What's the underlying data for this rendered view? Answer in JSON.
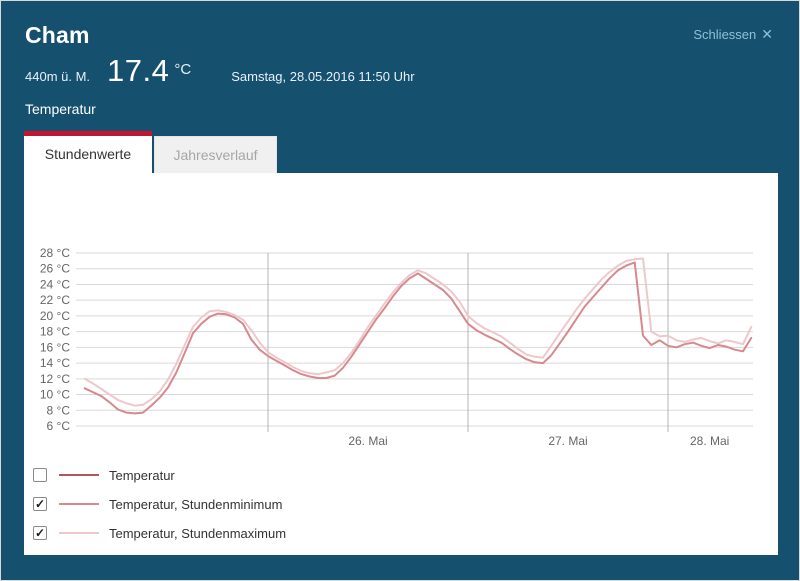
{
  "window": {
    "close_label": "Schliessen",
    "close_icon": "✕"
  },
  "header": {
    "title": "Cham",
    "elevation": "440m ü. M.",
    "current_temp": "17.4",
    "temp_unit": "°C",
    "datetime": "Samstag, 28.05.2016 11:50 Uhr",
    "section_label": "Temperatur"
  },
  "tabs": [
    {
      "label": "Stundenwerte",
      "active": true
    },
    {
      "label": "Jahresverlauf",
      "active": false
    }
  ],
  "legend": [
    {
      "label": "Temperatur",
      "checked": false,
      "color": "#b4575d"
    },
    {
      "label": "Temperatur, Stundenminimum",
      "checked": true,
      "color": "#d7898d"
    },
    {
      "label": "Temperatur, Stundenmaximum",
      "checked": true,
      "color": "#edc8cb"
    }
  ],
  "icons": {
    "check": "✓"
  },
  "colors": {
    "header_bg": "#15506e",
    "accent_red": "#c11531",
    "close_link": "#8fc0d9",
    "panel_bg": "#ffffff",
    "grid_horizontal": "#d9d9d9",
    "grid_vertical": "#b5b5b5",
    "axis_text": "#666666",
    "tab_inactive_bg": "#f0f0f0",
    "tab_inactive_text": "#a6a6a6"
  },
  "chart_data": {
    "type": "line",
    "title": "",
    "xlabel": "",
    "ylabel": "",
    "y_unit": "°C",
    "ylim": [
      6,
      28
    ],
    "y_tick_step": 2,
    "grid": true,
    "legend_position": "bottom-left",
    "hour_reference": "hours since 25.05.2016 00:00",
    "x_axis": {
      "day_lines": [
        {
          "hour": 24,
          "label": "26. Mai",
          "label_hour": 36
        },
        {
          "hour": 48,
          "label": "27. Mai",
          "label_hour": 60
        },
        {
          "hour": 72,
          "label": "28. Mai",
          "label_hour": 77
        }
      ]
    },
    "series": [
      {
        "name": "Temperatur",
        "color": "#b4575d",
        "visible": false,
        "values": []
      },
      {
        "name": "Temperatur, Stundenminimum",
        "color": "#d7898d",
        "visible": true,
        "start_hour": 2,
        "interval_hours": 1,
        "values": [
          10.8,
          10.3,
          9.8,
          9.0,
          8.1,
          7.7,
          7.6,
          7.7,
          8.6,
          9.6,
          10.9,
          12.8,
          15.3,
          17.8,
          19.0,
          19.9,
          20.3,
          20.2,
          19.8,
          19.0,
          17.0,
          15.7,
          14.9,
          14.3,
          13.7,
          13.1,
          12.6,
          12.3,
          12.1,
          12.1,
          12.4,
          13.4,
          14.8,
          16.4,
          18.0,
          19.6,
          21.0,
          22.5,
          23.8,
          24.8,
          25.4,
          24.7,
          24.0,
          23.3,
          22.2,
          20.6,
          19.0,
          18.2,
          17.6,
          17.1,
          16.6,
          15.8,
          15.1,
          14.5,
          14.1,
          14.0,
          15.0,
          16.5,
          18.0,
          19.6,
          21.2,
          22.4,
          23.6,
          24.8,
          25.8,
          26.4,
          26.8,
          17.5,
          16.3,
          16.9,
          16.2,
          16.0,
          16.4,
          16.6,
          16.2,
          15.9,
          16.3,
          16.1,
          15.7,
          15.5,
          17.2
        ]
      },
      {
        "name": "Temperatur, Stundenmaximum",
        "color": "#edc8cb",
        "visible": true,
        "start_hour": 2,
        "interval_hours": 1,
        "values": [
          12.0,
          11.4,
          10.7,
          10.0,
          9.3,
          8.9,
          8.6,
          8.7,
          9.4,
          10.4,
          11.9,
          13.9,
          16.3,
          18.6,
          19.8,
          20.6,
          20.7,
          20.5,
          20.1,
          19.5,
          18.2,
          16.6,
          15.4,
          14.7,
          14.1,
          13.5,
          13.0,
          12.7,
          12.6,
          12.8,
          13.1,
          14.0,
          15.3,
          16.9,
          18.6,
          20.1,
          21.6,
          23.0,
          24.2,
          25.2,
          25.8,
          25.4,
          24.7,
          24.0,
          23.1,
          21.8,
          20.0,
          19.1,
          18.4,
          17.9,
          17.4,
          16.6,
          15.8,
          15.1,
          14.8,
          14.7,
          16.2,
          17.8,
          19.3,
          20.8,
          22.2,
          23.4,
          24.6,
          25.6,
          26.4,
          27.0,
          27.2,
          27.3,
          18.0,
          17.4,
          17.5,
          16.9,
          16.7,
          17.0,
          17.2,
          16.8,
          16.5,
          16.9,
          16.7,
          16.4,
          18.6
        ]
      }
    ]
  }
}
